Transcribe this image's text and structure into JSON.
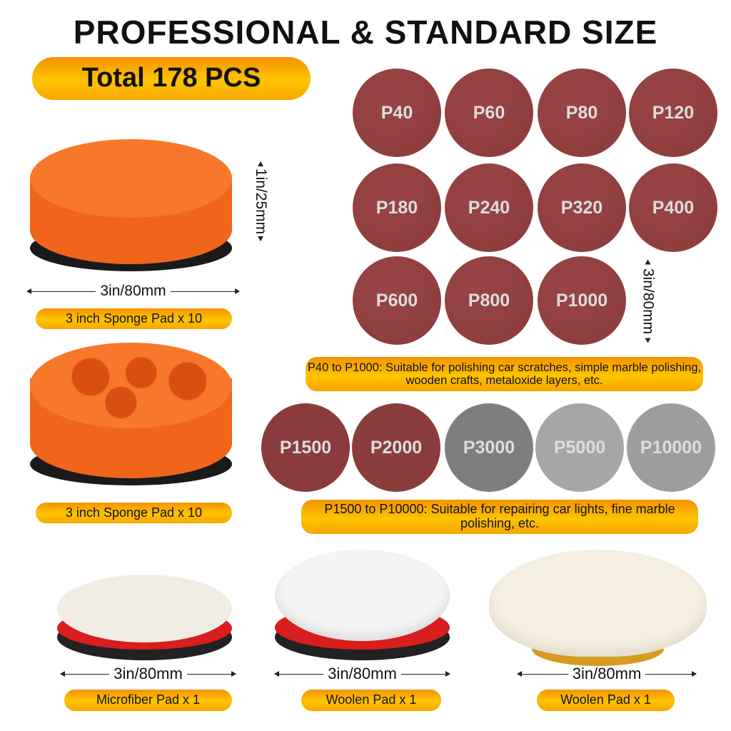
{
  "title": "PROFESSIONAL & STANDARD SIZE",
  "total_badge": "Total 178 PCS",
  "sponge_flat": {
    "label": "3 inch Sponge Pad x 10",
    "width": "3in/80mm",
    "height": "1in/25mm",
    "color": "#f26a1b"
  },
  "sponge_wave": {
    "label": "3 inch Sponge Pad x 10",
    "color": "#f26a1b"
  },
  "discs_group1": {
    "grits": [
      "P40",
      "P60",
      "P80",
      "P120",
      "P180",
      "P240",
      "P320",
      "P400",
      "P600",
      "P800",
      "P1000"
    ],
    "color": "#8a3b3b",
    "size": "3in/80mm",
    "description": "P40 to P1000: Suitable for polishing car scratches, simple marble polishing, wooden crafts, metaloxide layers, etc."
  },
  "discs_group2": {
    "grits": [
      "P1500",
      "P2000",
      "P3000",
      "P5000",
      "P10000"
    ],
    "colors": [
      "#8a3b3b",
      "#8a3d3d",
      "#7e7e7e",
      "#a6a6a6",
      "#9d9d9d"
    ],
    "description": "P1500 to P10000: Suitable for repairing car lights, fine marble polishing, etc."
  },
  "bottom_pads": [
    {
      "label": "Microfiber Pad x 1",
      "size": "3in/80mm"
    },
    {
      "label": "Woolen Pad x 1",
      "size": "3in/80mm"
    },
    {
      "label": "Woolen Pad x 1",
      "size": "3in/80mm"
    }
  ]
}
